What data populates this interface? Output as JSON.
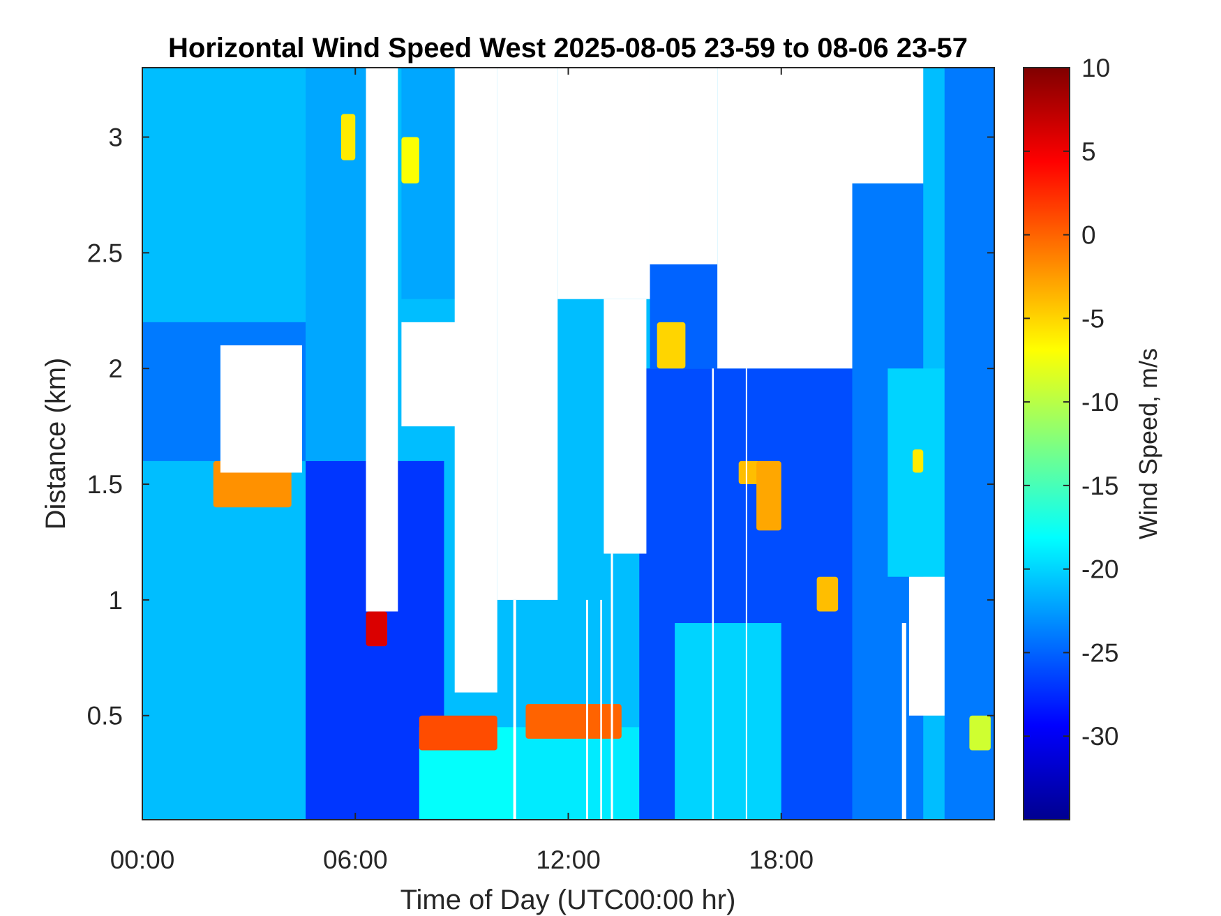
{
  "chart_data": {
    "type": "heatmap",
    "title": "Horizontal Wind Speed West 2025-08-05 23-59 to 08-06 23-57",
    "xlabel": "Time of Day (UTC00:00 hr)",
    "ylabel": "Distance (km)",
    "colorbar_label": "Wind Speed, m/s",
    "x_unit": "hours",
    "xlim": [
      0,
      24
    ],
    "ylim": [
      0.05,
      3.3
    ],
    "clim": [
      -35,
      10
    ],
    "colormap": "jet",
    "x_ticks": [
      {
        "value": 0,
        "label": "00:00"
      },
      {
        "value": 6,
        "label": "06:00"
      },
      {
        "value": 12,
        "label": "12:00"
      },
      {
        "value": 18,
        "label": "18:00"
      }
    ],
    "y_ticks": [
      {
        "value": 0.5,
        "label": "0.5"
      },
      {
        "value": 1,
        "label": "1"
      },
      {
        "value": 1.5,
        "label": "1.5"
      },
      {
        "value": 2,
        "label": "2"
      },
      {
        "value": 2.5,
        "label": "2.5"
      },
      {
        "value": 3,
        "label": "3"
      }
    ],
    "colorbar_ticks": [
      {
        "value": 10,
        "label": "10"
      },
      {
        "value": 5,
        "label": "5"
      },
      {
        "value": 0,
        "label": "0"
      },
      {
        "value": -5,
        "label": "-5"
      },
      {
        "value": -10,
        "label": "-10"
      },
      {
        "value": -15,
        "label": "-15"
      },
      {
        "value": -20,
        "label": "-20"
      },
      {
        "value": -25,
        "label": "-25"
      },
      {
        "value": -30,
        "label": "-30"
      }
    ],
    "no_data_color": "#ffffff",
    "background_speed": -21,
    "regions": [
      {
        "x": [
          0,
          4.6
        ],
        "y": [
          0.05,
          3.3
        ],
        "value": -21
      },
      {
        "x": [
          0,
          4.6
        ],
        "y": [
          1.6,
          2.2
        ],
        "value": -24
      },
      {
        "x": [
          4.6,
          8.5
        ],
        "y": [
          0.05,
          1.6
        ],
        "value": -27
      },
      {
        "x": [
          4.6,
          6.3
        ],
        "y": [
          1.6,
          3.3
        ],
        "value": -22
      },
      {
        "x": [
          7.3,
          9.0
        ],
        "y": [
          2.3,
          3.3
        ],
        "value": -22
      },
      {
        "x": [
          7.8,
          10.5
        ],
        "y": [
          0.05,
          0.45
        ],
        "value": -18
      },
      {
        "x": [
          10.5,
          14.0
        ],
        "y": [
          0.05,
          0.45
        ],
        "value": -19
      },
      {
        "x": [
          14.0,
          20.0
        ],
        "y": [
          0.05,
          2.0
        ],
        "value": -26
      },
      {
        "x": [
          14.3,
          16.2
        ],
        "y": [
          2.0,
          2.45
        ],
        "value": -25
      },
      {
        "x": [
          15.0,
          18.0
        ],
        "y": [
          0.05,
          0.9
        ],
        "value": -20
      },
      {
        "x": [
          20.0,
          22.0
        ],
        "y": [
          0.05,
          2.8
        ],
        "value": -24
      },
      {
        "x": [
          21.0,
          22.6
        ],
        "y": [
          1.1,
          2.0
        ],
        "value": -20
      },
      {
        "x": [
          22.6,
          24.0
        ],
        "y": [
          0.05,
          3.3
        ],
        "value": -24
      }
    ],
    "no_data_regions": [
      {
        "x": [
          6.3,
          7.2
        ],
        "y": [
          0.95,
          3.3
        ]
      },
      {
        "x": [
          7.3,
          9.8
        ],
        "y": [
          1.75,
          2.2
        ]
      },
      {
        "x": [
          8.8,
          10.0
        ],
        "y": [
          0.6,
          3.3
        ]
      },
      {
        "x": [
          10.0,
          11.7
        ],
        "y": [
          1.0,
          3.3
        ]
      },
      {
        "x": [
          11.7,
          14.3
        ],
        "y": [
          2.3,
          3.3
        ]
      },
      {
        "x": [
          13.0,
          14.2
        ],
        "y": [
          1.2,
          2.3
        ]
      },
      {
        "x": [
          14.3,
          16.2
        ],
        "y": [
          2.45,
          3.3
        ]
      },
      {
        "x": [
          16.2,
          20.0
        ],
        "y": [
          2.0,
          3.3
        ]
      },
      {
        "x": [
          20.0,
          22.0
        ],
        "y": [
          2.8,
          3.3
        ]
      },
      {
        "x": [
          21.6,
          22.6
        ],
        "y": [
          0.5,
          1.1
        ]
      },
      {
        "x": [
          2.2,
          4.5
        ],
        "y": [
          1.55,
          2.1
        ]
      }
    ],
    "no_data_columns": [
      {
        "x": 10.45,
        "width": 0.08,
        "y": [
          0.05,
          1.0
        ]
      },
      {
        "x": 12.5,
        "width": 0.06,
        "y": [
          0.05,
          1.0
        ]
      },
      {
        "x": 12.9,
        "width": 0.05,
        "y": [
          0.05,
          1.0
        ]
      },
      {
        "x": 13.2,
        "width": 0.06,
        "y": [
          0.05,
          1.2
        ]
      },
      {
        "x": 16.05,
        "width": 0.05,
        "y": [
          0.05,
          2.0
        ]
      },
      {
        "x": 17.0,
        "width": 0.04,
        "y": [
          0.05,
          2.0
        ]
      },
      {
        "x": 21.4,
        "width": 0.12,
        "y": [
          0.05,
          0.9
        ]
      }
    ],
    "features": [
      {
        "x": [
          2.0,
          4.2
        ],
        "y": [
          1.4,
          1.6
        ],
        "value": -2
      },
      {
        "x": [
          6.3,
          6.9
        ],
        "y": [
          0.8,
          0.95
        ],
        "value": 6
      },
      {
        "x": [
          7.8,
          10.0
        ],
        "y": [
          0.35,
          0.5
        ],
        "value": 1
      },
      {
        "x": [
          10.8,
          13.5
        ],
        "y": [
          0.4,
          0.55
        ],
        "value": 0
      },
      {
        "x": [
          5.6,
          6.0
        ],
        "y": [
          2.9,
          3.1
        ],
        "value": -6
      },
      {
        "x": [
          7.3,
          7.8
        ],
        "y": [
          2.8,
          3.0
        ],
        "value": -7
      },
      {
        "x": [
          14.5,
          15.3
        ],
        "y": [
          2.0,
          2.2
        ],
        "value": -5
      },
      {
        "x": [
          16.8,
          17.4
        ],
        "y": [
          1.5,
          1.6
        ],
        "value": -4
      },
      {
        "x": [
          17.3,
          18.0
        ],
        "y": [
          1.3,
          1.6
        ],
        "value": -3
      },
      {
        "x": [
          19.0,
          19.6
        ],
        "y": [
          0.95,
          1.1
        ],
        "value": -4
      },
      {
        "x": [
          21.7,
          22.0
        ],
        "y": [
          1.55,
          1.65
        ],
        "value": -6
      },
      {
        "x": [
          23.3,
          23.9
        ],
        "y": [
          0.35,
          0.5
        ],
        "value": -9
      }
    ]
  }
}
